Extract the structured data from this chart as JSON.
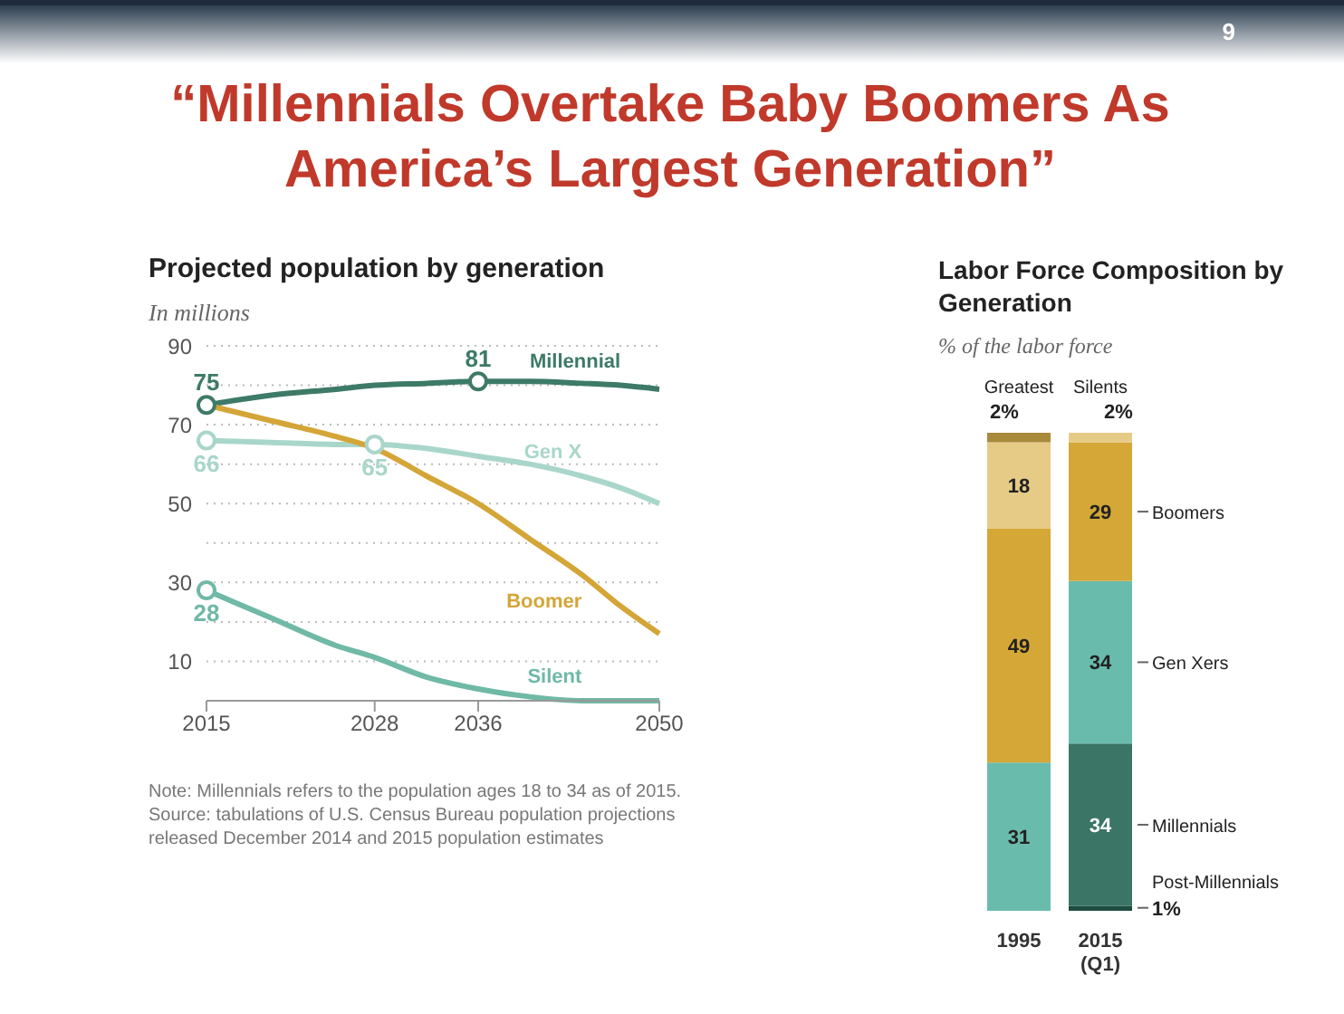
{
  "chart_data": [
    {
      "type": "other",
      "title": "“Millennials Overtake Baby Boomers As America’s Largest Generation”",
      "annotations": [
        "9"
      ]
    },
    {
      "type": "line",
      "title": "Projected population by generation",
      "subtitle": "In millions",
      "x": [
        2015,
        2020,
        2025,
        2028,
        2032,
        2036,
        2040,
        2044,
        2047,
        2050
      ],
      "xlim": [
        2015,
        2050
      ],
      "xticks": [
        2015,
        2028,
        2036,
        2050
      ],
      "ylim": [
        0,
        90
      ],
      "yticks": [
        {
          "value": 0,
          "label": null
        },
        10,
        {
          "value": 20,
          "label": null
        },
        30,
        {
          "value": 40,
          "label": null
        },
        50,
        {
          "value": 60,
          "label": null
        },
        70,
        {
          "value": 80,
          "label": null
        },
        90
      ],
      "grid": "y",
      "series": [
        {
          "name": "Millennial",
          "color": "#3d7a68",
          "values": [
            75,
            77.5,
            79,
            80,
            80.5,
            81,
            81,
            80.5,
            80,
            79
          ],
          "value_labels": [
            "75",
            null,
            null,
            null,
            null,
            "81",
            null,
            null,
            null,
            null
          ]
        },
        {
          "name": "Gen X",
          "color": "#a9d6ca",
          "values": [
            66,
            65.5,
            65,
            65,
            64,
            62,
            60,
            57,
            54,
            50
          ],
          "value_labels": [
            "66",
            null,
            null,
            "65",
            null,
            null,
            null,
            null,
            null,
            null
          ]
        },
        {
          "name": "Boomer",
          "color": "#d4a537",
          "values": [
            75,
            71,
            67,
            64,
            57,
            50,
            41,
            32,
            24,
            17
          ]
        },
        {
          "name": "Silent",
          "color": "#6fb9a6",
          "values": [
            28,
            21,
            14,
            11,
            6,
            3,
            1,
            0,
            0,
            0
          ],
          "value_labels": [
            "28",
            null,
            null,
            null,
            null,
            null,
            null,
            null,
            null,
            null
          ]
        }
      ],
      "annotations": [
        "Note: Millennials refers to the population ages 18 to 34 as of 2015.",
        "Source: tabulations of U.S. Census Bureau population projections released December 2014 and 2015 population estimates"
      ]
    },
    {
      "type": "bar",
      "stacked": true,
      "title": "Labor Force Composition by Generation",
      "subtitle": "% of the labor force",
      "categories": [
        "1995",
        "2015 (Q1)"
      ],
      "tick_labels": "x",
      "series": [
        {
          "name": "Post-Millennials",
          "color": "#1d4d40",
          "values": [
            null,
            1
          ],
          "value_labels": [
            null,
            "1%"
          ]
        },
        {
          "name": "Millennials",
          "color": "#3a7566",
          "values": [
            null,
            34
          ],
          "value_labels": [
            null,
            "34"
          ]
        },
        {
          "name": "Gen Xers",
          "color": "#69bcac",
          "values": [
            31,
            34
          ],
          "value_labels": [
            "31",
            "34"
          ]
        },
        {
          "name": "Boomers",
          "color": "#d4a736",
          "values": [
            49,
            29
          ],
          "value_labels": [
            "49",
            "29"
          ]
        },
        {
          "name": "Silents",
          "color": "#e6cb87",
          "values": [
            18,
            2
          ],
          "value_labels": [
            "18",
            "2%"
          ]
        },
        {
          "name": "Greatest",
          "color": "#a88a3a",
          "values": [
            2,
            null
          ],
          "value_labels": [
            "2%",
            null
          ]
        }
      ]
    }
  ]
}
